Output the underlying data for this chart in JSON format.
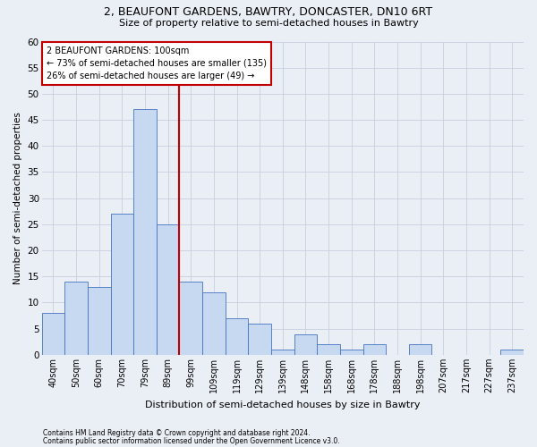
{
  "title1": "2, BEAUFONT GARDENS, BAWTRY, DONCASTER, DN10 6RT",
  "title2": "Size of property relative to semi-detached houses in Bawtry",
  "xlabel": "Distribution of semi-detached houses by size in Bawtry",
  "ylabel": "Number of semi-detached properties",
  "footer1": "Contains HM Land Registry data © Crown copyright and database right 2024.",
  "footer2": "Contains public sector information licensed under the Open Government Licence v3.0.",
  "bar_labels": [
    "40sqm",
    "50sqm",
    "60sqm",
    "70sqm",
    "79sqm",
    "89sqm",
    "99sqm",
    "109sqm",
    "119sqm",
    "129sqm",
    "139sqm",
    "148sqm",
    "158sqm",
    "168sqm",
    "178sqm",
    "188sqm",
    "198sqm",
    "207sqm",
    "217sqm",
    "227sqm",
    "237sqm"
  ],
  "bar_values": [
    8,
    14,
    13,
    27,
    47,
    25,
    14,
    12,
    7,
    6,
    1,
    4,
    2,
    1,
    2,
    0,
    2,
    0,
    0,
    0,
    1
  ],
  "bar_color": "#c6d9f1",
  "bar_edge_color": "#4472c4",
  "grid_color": "#c8d0de",
  "background_color": "#eaeef5",
  "annotation_line1": "2 BEAUFONT GARDENS: 100sqm",
  "annotation_line2": "← 73% of semi-detached houses are smaller (135)",
  "annotation_line3": "26% of semi-detached houses are larger (49) →",
  "vline_x_index": 6,
  "vline_color": "#c00000",
  "annotation_box_facecolor": "#ffffff",
  "annotation_box_edgecolor": "#c00000",
  "ylim": [
    0,
    60
  ],
  "yticks": [
    0,
    5,
    10,
    15,
    20,
    25,
    30,
    35,
    40,
    45,
    50,
    55,
    60
  ]
}
